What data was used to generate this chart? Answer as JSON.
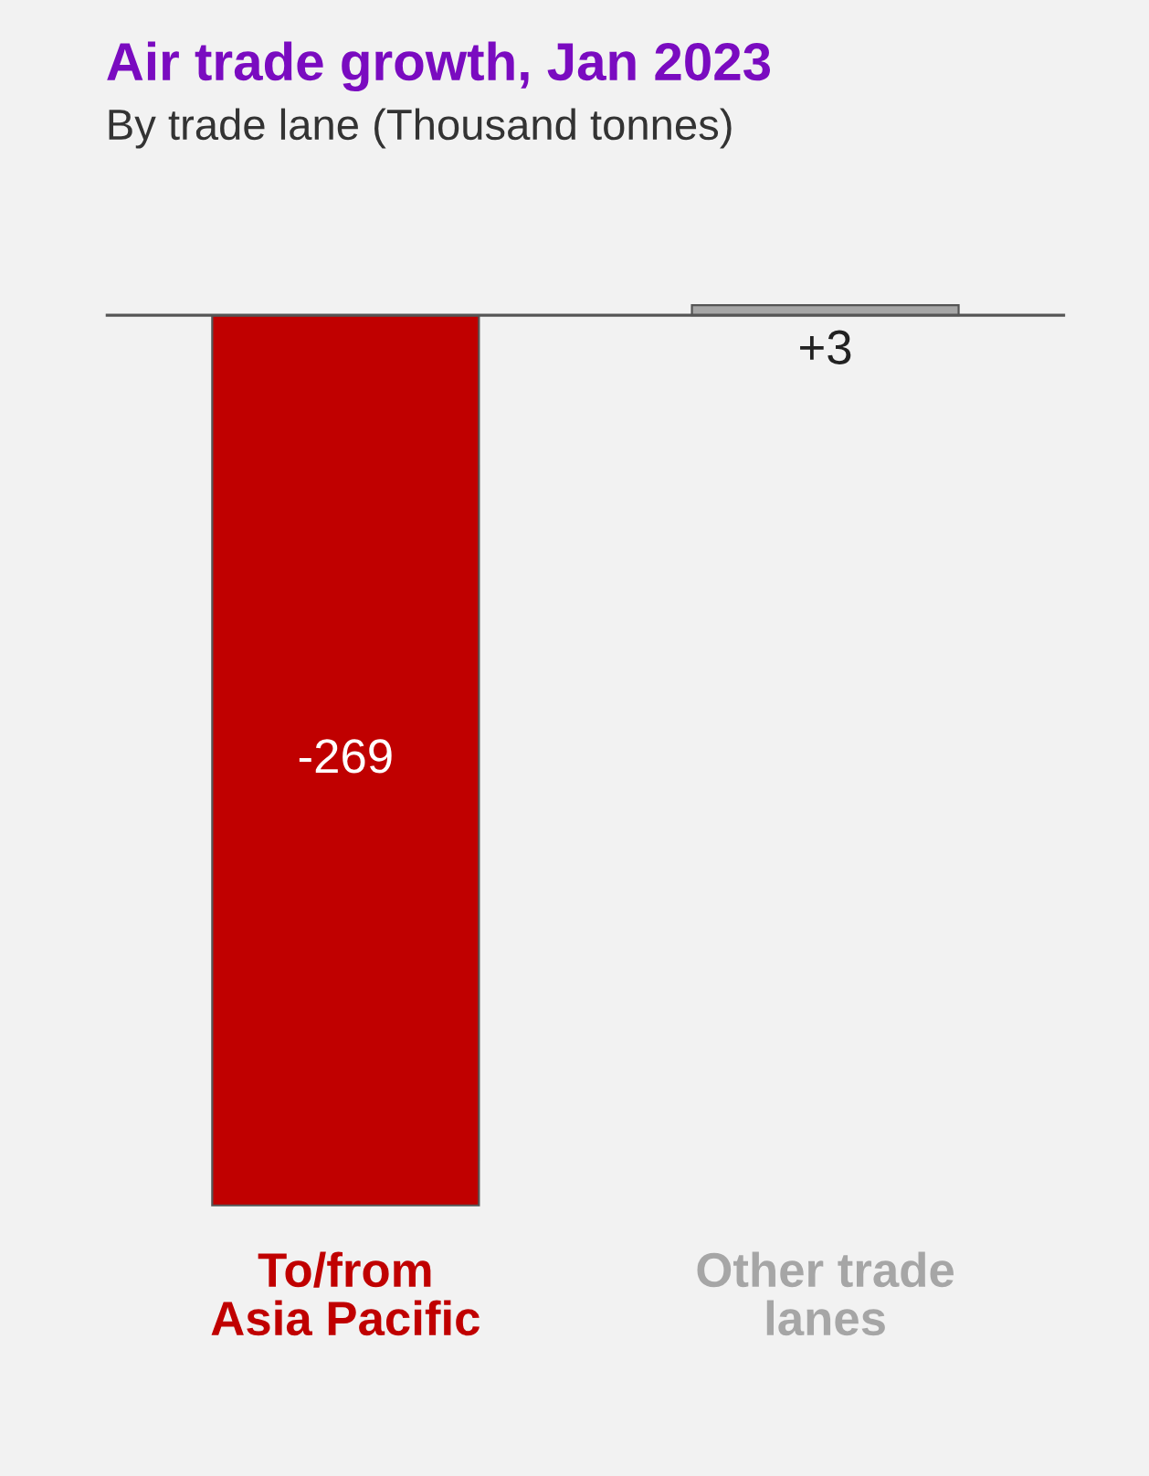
{
  "chart_data": {
    "type": "bar",
    "title": "Air trade growth, Jan 2023",
    "subtitle": "By trade lane (Thousand tonnes)",
    "categories": [
      "To/from\nAsia Pacific",
      "Other trade\nlanes"
    ],
    "values": [
      -269,
      3
    ],
    "colors": [
      "#c00000",
      "#a6a6a6"
    ],
    "value_labels": [
      "-269",
      "+3"
    ]
  }
}
